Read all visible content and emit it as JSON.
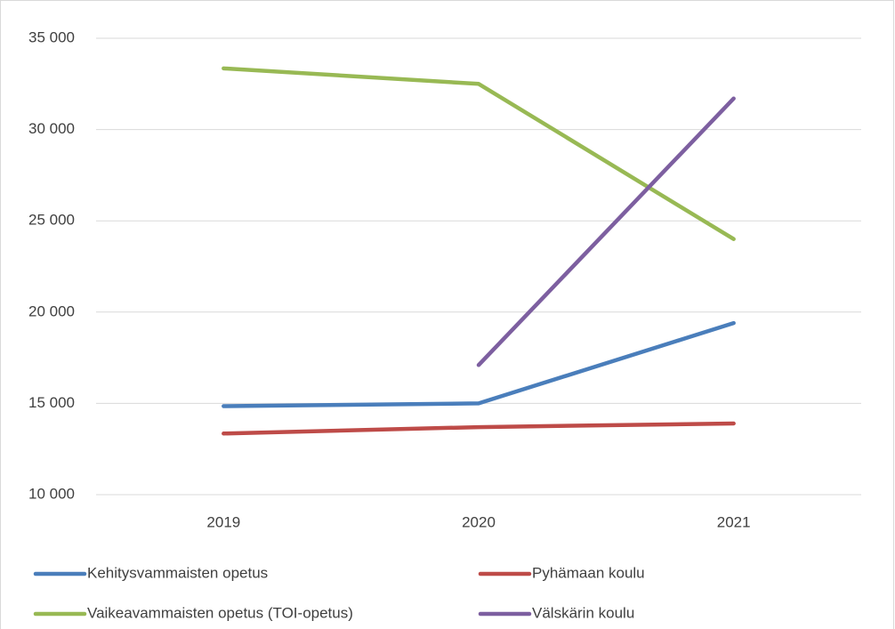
{
  "chart_data": {
    "type": "line",
    "categories": [
      "2019",
      "2020",
      "2021"
    ],
    "series": [
      {
        "name": "Kehitysvammaisten opetus",
        "color": "#4a7ebb",
        "values": [
          14850,
          15000,
          19400
        ]
      },
      {
        "name": "Pyhämaan koulu",
        "color": "#be4b48",
        "values": [
          13350,
          13700,
          13900
        ]
      },
      {
        "name": "Vaikeavammaisten opetus (TOI-opetus)",
        "color": "#98b954",
        "values": [
          33350,
          32500,
          24000
        ]
      },
      {
        "name": "Välskärin koulu",
        "color": "#7d5fa0",
        "values": [
          null,
          17100,
          31700
        ]
      }
    ],
    "ylim": [
      10000,
      35000
    ],
    "yticks": [
      {
        "value": 10000,
        "label": "10 000"
      },
      {
        "value": 15000,
        "label": "15 000"
      },
      {
        "value": 20000,
        "label": "20 000"
      },
      {
        "value": 25000,
        "label": "25 000"
      },
      {
        "value": 30000,
        "label": "30 000"
      },
      {
        "value": 35000,
        "label": "35 000"
      }
    ],
    "grid": true,
    "legend": "bottom"
  }
}
